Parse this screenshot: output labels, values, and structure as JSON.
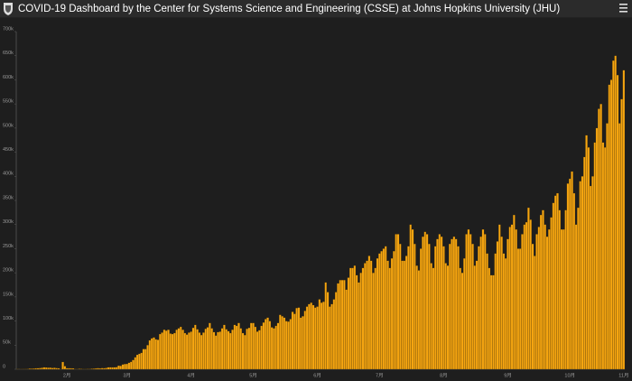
{
  "chart_data": {
    "type": "bar",
    "title": "COVID-19 Dashboard by the Center for Systems Science and Engineering (CSSE) at Johns Hopkins University (JHU)",
    "color": "#f5a511",
    "grid": false,
    "ylim": [
      0,
      700000
    ],
    "yticks": [
      0,
      {
        "value": 50000,
        "label": "50k"
      },
      {
        "value": 100000,
        "label": "100k"
      },
      {
        "value": 150000,
        "label": "150k"
      },
      {
        "value": 200000,
        "label": "200k"
      },
      {
        "value": 250000,
        "label": "250k"
      },
      {
        "value": 300000,
        "label": "300k"
      },
      {
        "value": 350000,
        "label": "350k"
      },
      {
        "value": 400000,
        "label": "400k"
      },
      {
        "value": 450000,
        "label": "450k"
      },
      {
        "value": 500000,
        "label": "500k"
      },
      {
        "value": 550000,
        "label": "550k"
      },
      {
        "value": 600000,
        "label": "600k"
      },
      {
        "value": 650000,
        "label": "650k"
      },
      {
        "value": 700000,
        "label": "700k"
      }
    ],
    "categories": [
      null,
      null,
      null,
      null,
      null,
      null,
      null,
      null,
      null,
      null,
      null,
      null,
      null,
      null,
      null,
      null,
      null,
      null,
      null,
      null,
      null,
      null,
      null,
      null,
      "2月",
      null,
      null,
      null,
      null,
      null,
      null,
      null,
      null,
      null,
      null,
      null,
      null,
      null,
      null,
      null,
      null,
      null,
      null,
      null,
      null,
      null,
      null,
      null,
      null,
      null,
      null,
      null,
      null,
      "3月",
      null,
      null,
      null,
      null,
      null,
      null,
      null,
      null,
      null,
      null,
      null,
      null,
      null,
      null,
      null,
      null,
      null,
      null,
      null,
      null,
      null,
      null,
      null,
      null,
      null,
      null,
      null,
      null,
      null,
      null,
      "4月",
      null,
      null,
      null,
      null,
      null,
      null,
      null,
      null,
      null,
      null,
      null,
      null,
      null,
      null,
      null,
      null,
      null,
      null,
      null,
      null,
      null,
      null,
      null,
      null,
      null,
      null,
      null,
      null,
      null,
      "5月",
      null,
      null,
      null,
      null,
      null,
      null,
      null,
      null,
      null,
      null,
      null,
      null,
      null,
      null,
      null,
      null,
      null,
      null,
      null,
      null,
      null,
      null,
      null,
      null,
      null,
      null,
      null,
      null,
      null,
      null,
      "6月",
      null,
      null,
      null,
      null,
      null,
      null,
      null,
      null,
      null,
      null,
      null,
      null,
      null,
      null,
      null,
      null,
      null,
      null,
      null,
      null,
      null,
      null,
      null,
      null,
      null,
      null,
      null,
      null,
      null,
      "7月",
      null,
      null,
      null,
      null,
      null,
      null,
      null,
      null,
      null,
      null,
      null,
      null,
      null,
      null,
      null,
      null,
      null,
      null,
      null,
      null,
      null,
      null,
      null,
      null,
      null,
      null,
      null,
      null,
      null,
      null,
      "8月",
      null,
      null,
      null,
      null,
      null,
      null,
      null,
      null,
      null,
      null,
      null,
      null,
      null,
      null,
      null,
      null,
      null,
      null,
      null,
      null,
      null,
      null,
      null,
      null,
      null,
      null,
      null,
      null,
      null,
      null,
      "9月",
      null,
      null,
      null,
      null,
      null,
      null,
      null,
      null,
      null,
      null,
      null,
      null,
      null,
      null,
      null,
      null,
      null,
      null,
      null,
      null,
      null,
      null,
      null,
      null,
      null,
      null,
      null,
      null,
      null,
      "10月",
      null,
      null,
      null,
      null,
      null,
      null,
      null,
      null,
      null,
      null,
      null,
      null,
      null,
      null,
      null,
      null,
      null,
      null,
      null,
      null,
      null,
      null,
      null,
      null,
      null,
      "11月"
    ],
    "values": [
      500,
      100,
      300,
      500,
      700,
      800,
      1500,
      1200,
      1700,
      2000,
      2100,
      2600,
      3000,
      3900,
      3700,
      3200,
      3400,
      2700,
      3000,
      2500,
      2000,
      400,
      15100,
      6500,
      2100,
      2100,
      2000,
      1900,
      600,
      600,
      1000,
      900,
      600,
      500,
      800,
      800,
      1100,
      1300,
      1900,
      2300,
      1900,
      2500,
      2200,
      2800,
      3900,
      4000,
      3900,
      4000,
      4500,
      7500,
      7000,
      10000,
      10900,
      11200,
      13500,
      15400,
      19300,
      25000,
      30000,
      32000,
      34000,
      42000,
      42000,
      50000,
      60000,
      64000,
      66000,
      62000,
      61000,
      73000,
      76000,
      82000,
      80000,
      82000,
      74000,
      73000,
      75000,
      82000,
      85000,
      88000,
      82000,
      75000,
      72000,
      76000,
      78000,
      86000,
      92000,
      83000,
      76000,
      71000,
      76000,
      84000,
      87000,
      96000,
      85000,
      77000,
      70000,
      77000,
      78000,
      85000,
      92000,
      83000,
      79000,
      75000,
      82000,
      92000,
      90000,
      96000,
      85000,
      75000,
      71000,
      84000,
      86000,
      96000,
      96000,
      88000,
      78000,
      81000,
      90000,
      97000,
      104000,
      107000,
      100000,
      87000,
      85000,
      90000,
      96000,
      113000,
      110000,
      107000,
      100000,
      99000,
      104000,
      119000,
      115000,
      127000,
      128000,
      107000,
      110000,
      121000,
      130000,
      135000,
      138000,
      133000,
      128000,
      130000,
      145000,
      138000,
      140000,
      180000,
      160000,
      130000,
      135000,
      145000,
      160000,
      178000,
      185000,
      185000,
      185000,
      165000,
      190000,
      210000,
      210000,
      215000,
      195000,
      180000,
      200000,
      210000,
      220000,
      225000,
      235000,
      225000,
      200000,
      210000,
      230000,
      240000,
      245000,
      250000,
      255000,
      225000,
      210000,
      230000,
      245000,
      280000,
      280000,
      260000,
      225000,
      225000,
      235000,
      255000,
      300000,
      290000,
      260000,
      215000,
      205000,
      250000,
      275000,
      285000,
      280000,
      260000,
      220000,
      210000,
      255000,
      270000,
      280000,
      275000,
      255000,
      220000,
      215000,
      260000,
      270000,
      275000,
      270000,
      255000,
      210000,
      200000,
      230000,
      280000,
      290000,
      280000,
      260000,
      215000,
      225000,
      255000,
      275000,
      290000,
      280000,
      240000,
      210000,
      195000,
      195000,
      240000,
      265000,
      300000,
      275000,
      240000,
      230000,
      270000,
      295000,
      300000,
      320000,
      290000,
      250000,
      250000,
      280000,
      300000,
      305000,
      335000,
      310000,
      260000,
      235000,
      280000,
      295000,
      320000,
      330000,
      300000,
      275000,
      290000,
      315000,
      345000,
      360000,
      365000,
      330000,
      290000,
      290000,
      330000,
      385000,
      395000,
      410000,
      365000,
      300000,
      335000,
      390000,
      400000,
      440000,
      485000,
      460000,
      380000,
      400000,
      470000,
      500000,
      540000,
      550000,
      470000,
      460000,
      510000,
      590000,
      600000,
      640000,
      650000,
      610000,
      510000,
      560000,
      620000
    ]
  }
}
